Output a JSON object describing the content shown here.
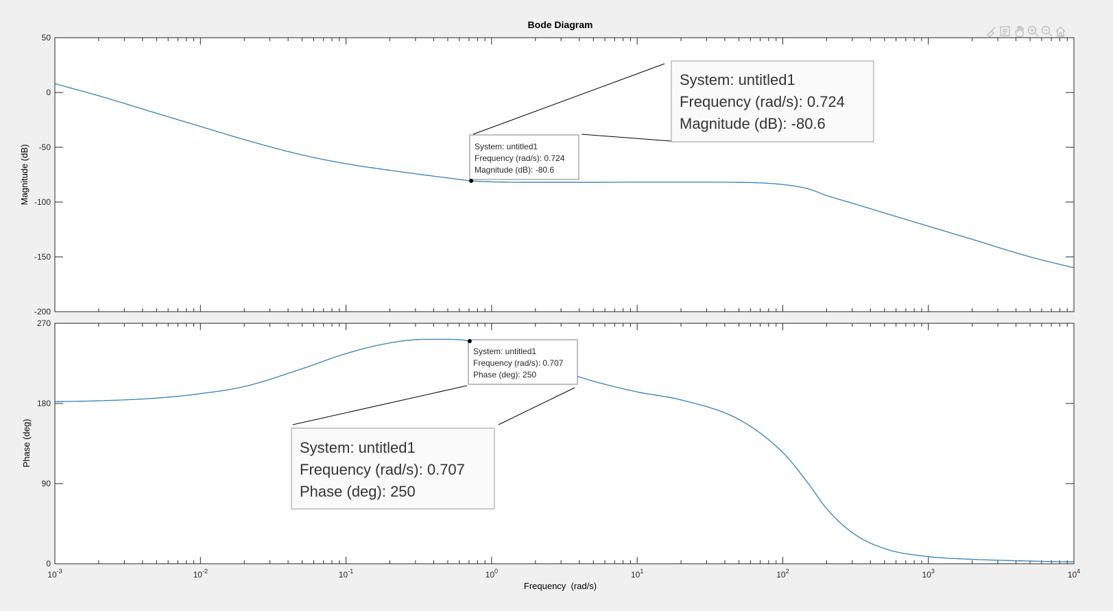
{
  "figure": {
    "title": "Bode Diagram",
    "toolbar_icons": [
      "brush-icon",
      "datatip-icon",
      "pan-icon",
      "zoom-in-icon",
      "zoom-out-icon",
      "home-icon"
    ]
  },
  "colors": {
    "line": "#2f7fc1",
    "axes": "#262626",
    "background": "#f0f0f0"
  },
  "chart_data": [
    {
      "type": "line",
      "title": "Bode Diagram",
      "xlabel": "",
      "ylabel": "Magnitude (dB)",
      "xscale": "log",
      "xlim": [
        0.001,
        10000
      ],
      "ylim": [
        -200,
        50
      ],
      "yticks": [
        50,
        0,
        -50,
        -100,
        -150,
        -200
      ],
      "grid": false,
      "series": [
        {
          "x": [
            0.001,
            0.002,
            0.005,
            0.01,
            0.02,
            0.05,
            0.1,
            0.2,
            0.5,
            0.724,
            1,
            2,
            5,
            10,
            20,
            50,
            100,
            150,
            200,
            300,
            500,
            1000,
            2000,
            5000,
            10000
          ],
          "y": [
            8,
            -3,
            -19,
            -31,
            -43,
            -57,
            -65,
            -71,
            -78,
            -80.6,
            -81.5,
            -82,
            -82,
            -81.8,
            -81.8,
            -82,
            -84,
            -88,
            -94,
            -101,
            -110,
            -122,
            -134,
            -150,
            -160
          ]
        }
      ],
      "datatip": {
        "system": "System: untitled1",
        "frequency": "Frequency (rad/s): 0.724",
        "value": "Magnitude (dB): -80.6",
        "x": 0.724,
        "y": -80.6
      }
    },
    {
      "type": "line",
      "xlabel": "Frequency  (rad/s)",
      "ylabel": "Phase (deg)",
      "xscale": "log",
      "xlim": [
        0.001,
        10000
      ],
      "ylim": [
        0,
        270
      ],
      "yticks": [
        270,
        180,
        90,
        0
      ],
      "xticks": [
        "10^-3",
        "10^-2",
        "10^-1",
        "10^0",
        "10^1",
        "10^2",
        "10^3",
        "10^4"
      ],
      "grid": false,
      "series": [
        {
          "x": [
            0.001,
            0.002,
            0.005,
            0.01,
            0.02,
            0.05,
            0.1,
            0.2,
            0.35,
            0.5,
            0.707,
            1,
            2,
            5,
            10,
            20,
            50,
            100,
            150,
            200,
            300,
            500,
            1000,
            2000,
            5000,
            10000
          ],
          "y": [
            182,
            183,
            186,
            191,
            199,
            219,
            236,
            248,
            252,
            252,
            250,
            242,
            226,
            205,
            193,
            184,
            162,
            125,
            90,
            62,
            35,
            17,
            8,
            5,
            3,
            2
          ]
        }
      ],
      "datatip": {
        "system": "System: untitled1",
        "frequency": "Frequency (rad/s): 0.707",
        "value": "Phase (deg): 250",
        "x": 0.707,
        "y": 250
      }
    }
  ]
}
